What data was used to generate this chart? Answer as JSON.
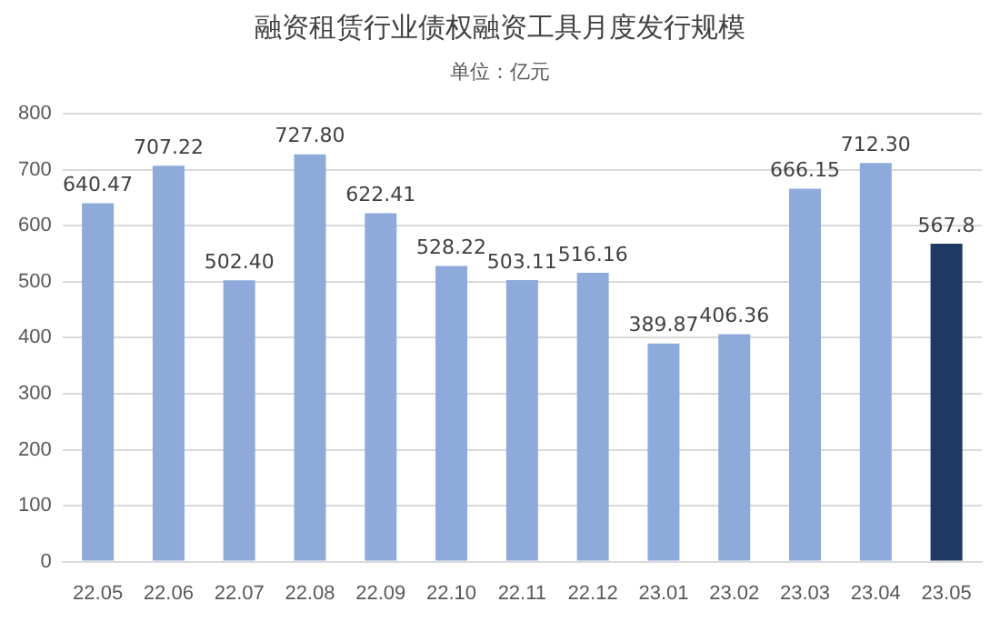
{
  "chart_data": {
    "type": "bar",
    "title": "融资租赁行业债权融资工具月度发行规模",
    "subtitle": "单位：亿元",
    "categories": [
      "22.05",
      "22.06",
      "22.07",
      "22.08",
      "22.09",
      "22.10",
      "22.11",
      "22.12",
      "23.01",
      "23.02",
      "23.03",
      "23.04",
      "23.05"
    ],
    "values": [
      640.47,
      707.22,
      502.4,
      727.8,
      622.41,
      528.22,
      503.11,
      516.16,
      389.87,
      406.36,
      666.15,
      712.3,
      567.8
    ],
    "colors": [
      "#8eaadb",
      "#8eaadb",
      "#8eaadb",
      "#8eaadb",
      "#8eaadb",
      "#8eaadb",
      "#8eaadb",
      "#8eaadb",
      "#8eaadb",
      "#8eaadb",
      "#8eaadb",
      "#8eaadb",
      "#1f3864"
    ],
    "value_labels": [
      "640.47",
      "707.22",
      "502.40",
      "727.80",
      "622.41",
      "528.22",
      "503.11",
      "516.16",
      "389.87",
      "406.36",
      "666.15",
      "712.30",
      "567.8"
    ],
    "ylim": [
      0,
      800
    ],
    "yticks": [
      0,
      100,
      200,
      300,
      400,
      500,
      600,
      700,
      800
    ],
    "grid": "y",
    "legend": false
  }
}
